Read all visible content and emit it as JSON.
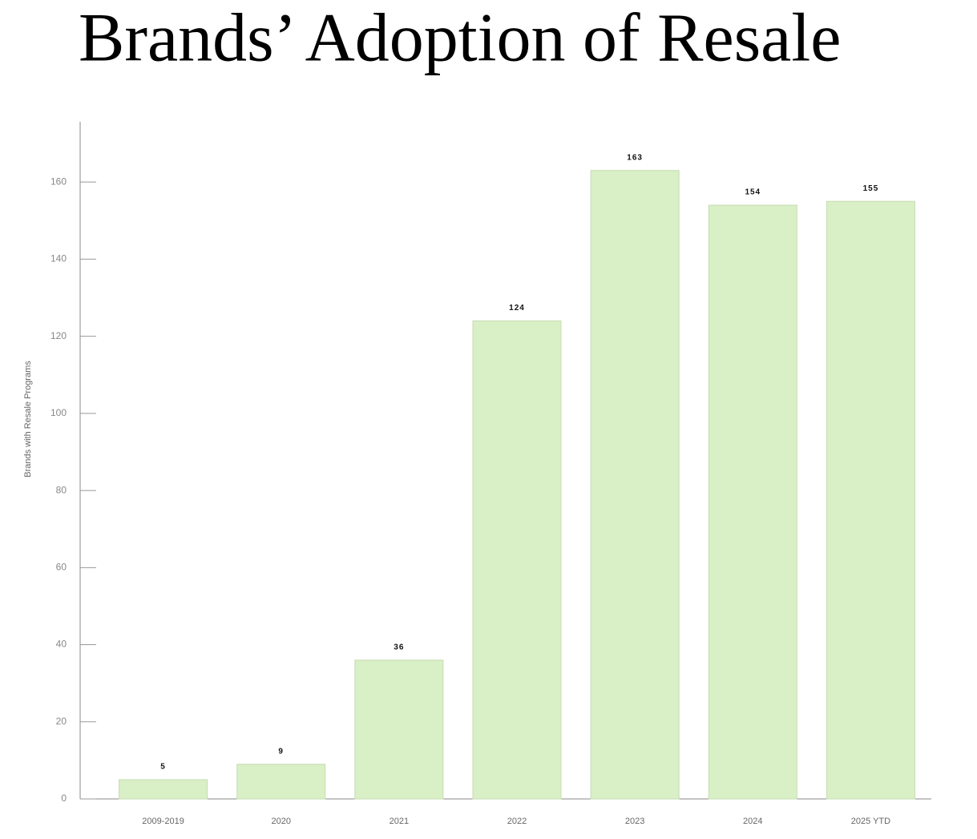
{
  "chart_data": {
    "type": "bar",
    "title": "Brands’ Adoption of Resale",
    "y_label": "Brands with Resale Programs",
    "categories": [
      "2009-2019",
      "2020",
      "2021",
      "2022",
      "2023",
      "2024",
      "2025 YTD"
    ],
    "values": [
      5,
      9,
      36,
      124,
      163,
      154,
      155
    ],
    "color": "#d9efc6",
    "ylim": [
      0,
      175
    ],
    "yticks": [
      0,
      20,
      40,
      60,
      80,
      100,
      120,
      140,
      160
    ]
  }
}
